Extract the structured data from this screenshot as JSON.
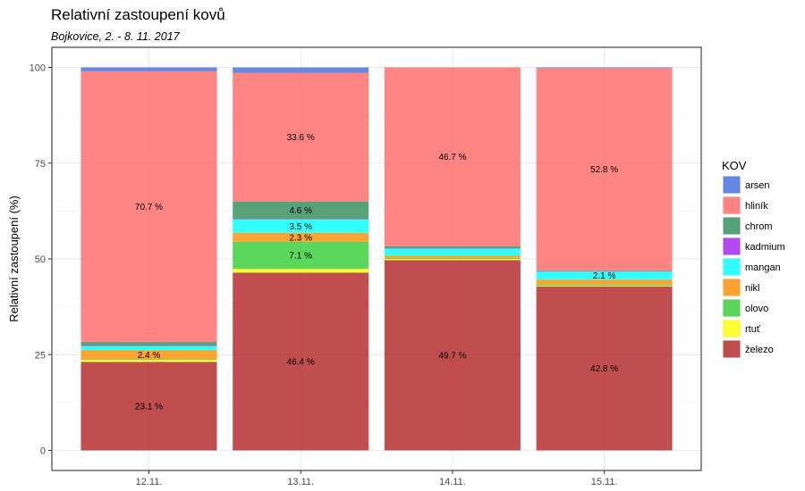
{
  "chart_data": {
    "type": "bar",
    "stacked": true,
    "title": "Relativní zastoupení kovů",
    "subtitle": "Bojkovice, 2. - 8. 11. 2017",
    "xlabel": "",
    "ylabel": "Relativní zastoupení (%)",
    "ylim": [
      0,
      100
    ],
    "yticks": [
      0,
      25,
      50,
      75,
      100
    ],
    "grid": true,
    "legend": {
      "title": "KOV",
      "placement": "right"
    },
    "categories": [
      "12.11.",
      "13.11.",
      "14.11.",
      "15.11."
    ],
    "series": [
      {
        "name": "železo",
        "color": "#b22222",
        "values": [
          23.1,
          46.4,
          49.7,
          42.8
        ]
      },
      {
        "name": "rtuť",
        "color": "#ffff00",
        "values": [
          0.5,
          1.0,
          0.3,
          0.2
        ]
      },
      {
        "name": "olovo",
        "color": "#32cd32",
        "values": [
          0.2,
          7.1,
          0.3,
          0.3
        ]
      },
      {
        "name": "nikl",
        "color": "#ff8c00",
        "values": [
          2.4,
          2.3,
          0.6,
          1.3
        ]
      },
      {
        "name": "mangan",
        "color": "#00ffff",
        "values": [
          1.0,
          3.5,
          1.8,
          2.1
        ]
      },
      {
        "name": "kadmium",
        "color": "#a020f0",
        "values": [
          0.1,
          0.1,
          0.1,
          0.1
        ]
      },
      {
        "name": "chrom",
        "color": "#2e8b57",
        "values": [
          1.0,
          4.6,
          0.5,
          0.2
        ]
      },
      {
        "name": "hliník",
        "color": "#ff6666",
        "values": [
          70.7,
          33.6,
          46.7,
          52.8
        ]
      },
      {
        "name": "arsen",
        "color": "#4169e1",
        "values": [
          1.0,
          1.4,
          0.0,
          0.2
        ]
      }
    ],
    "data_labels": [
      {
        "category": "12.11.",
        "series": "železo",
        "text": "23.1 %"
      },
      {
        "category": "12.11.",
        "series": "nikl",
        "text": "2.4 %"
      },
      {
        "category": "12.11.",
        "series": "hliník",
        "text": "70.7 %"
      },
      {
        "category": "13.11.",
        "series": "železo",
        "text": "46.4 %"
      },
      {
        "category": "13.11.",
        "series": "olovo",
        "text": "7.1 %"
      },
      {
        "category": "13.11.",
        "series": "nikl",
        "text": "2.3 %"
      },
      {
        "category": "13.11.",
        "series": "mangan",
        "text": "3.5 %"
      },
      {
        "category": "13.11.",
        "series": "chrom",
        "text": "4.6 %"
      },
      {
        "category": "13.11.",
        "series": "hliník",
        "text": "33.6 %"
      },
      {
        "category": "14.11.",
        "series": "železo",
        "text": "49.7 %"
      },
      {
        "category": "14.11.",
        "series": "hliník",
        "text": "46.7 %"
      },
      {
        "category": "15.11.",
        "series": "železo",
        "text": "42.8 %"
      },
      {
        "category": "15.11.",
        "series": "mangan",
        "text": "2.1 %"
      },
      {
        "category": "15.11.",
        "series": "hliník",
        "text": "52.8 %"
      }
    ],
    "legend_order": [
      "arsen",
      "hliník",
      "chrom",
      "kadmium",
      "mangan",
      "nikl",
      "olovo",
      "rtuť",
      "železo"
    ]
  }
}
